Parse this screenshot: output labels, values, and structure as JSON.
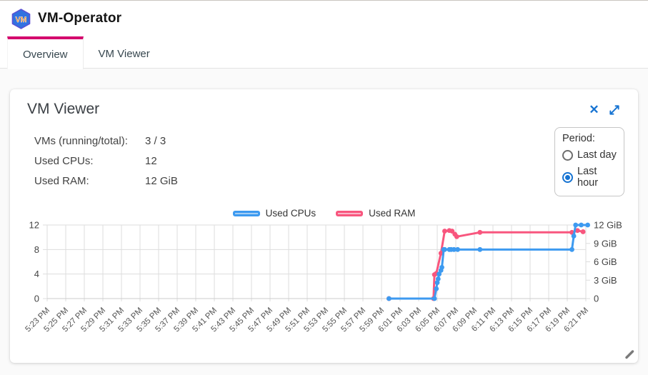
{
  "app": {
    "title": "VM-Operator",
    "logo_text": "VM"
  },
  "tabs": [
    {
      "label": "Overview",
      "active": true
    },
    {
      "label": "VM Viewer",
      "active": false
    }
  ],
  "card": {
    "title": "VM Viewer",
    "stats": [
      {
        "label": "VMs (running/total):",
        "value": "3 / 3"
      },
      {
        "label": "Used CPUs:",
        "value": "12"
      },
      {
        "label": "Used RAM:",
        "value": "12 GiB"
      }
    ],
    "period": {
      "label": "Period:",
      "options": [
        {
          "label": "Last day",
          "selected": false
        },
        {
          "label": "Last hour",
          "selected": true
        }
      ]
    }
  },
  "icons": {
    "close": "✕",
    "expand": "expand-diagonal-arrows",
    "resize": "diagonal-resize-grip"
  },
  "colors": {
    "accent_magenta": "#d4086d",
    "icon_blue": "#1673d2",
    "cpu_blue": "#3d9af0",
    "ram_pink": "#f8567e",
    "grid": "#dddddd"
  },
  "chart_data": {
    "type": "line",
    "title": "",
    "legend_position": "top-center",
    "grid": true,
    "x_range_minutes": [
      0,
      58
    ],
    "x_axis": {
      "start": "5:23 PM",
      "interval_minutes": 2,
      "labels": [
        "5:23 PM",
        "5:25 PM",
        "5:27 PM",
        "5:29 PM",
        "5:31 PM",
        "5:33 PM",
        "5:35 PM",
        "5:37 PM",
        "5:39 PM",
        "5:41 PM",
        "5:43 PM",
        "5:45 PM",
        "5:47 PM",
        "5:49 PM",
        "5:51 PM",
        "5:53 PM",
        "5:55 PM",
        "5:57 PM",
        "5:59 PM",
        "6:01 PM",
        "6:03 PM",
        "6:05 PM",
        "6:07 PM",
        "6:09 PM",
        "6:11 PM",
        "6:13 PM",
        "6:15 PM",
        "6:17 PM",
        "6:19 PM",
        "6:21 PM"
      ]
    },
    "left_axis": {
      "label": "CPUs",
      "ticks": [
        0,
        4,
        8,
        12
      ],
      "range": [
        0,
        12
      ]
    },
    "right_axis": {
      "label": "RAM",
      "range": [
        0,
        12
      ],
      "ticks": [
        {
          "v": 0,
          "label": "0"
        },
        {
          "v": 3,
          "label": "3 GiB"
        },
        {
          "v": 6,
          "label": "6 GiB"
        },
        {
          "v": 9,
          "label": "9 GiB"
        },
        {
          "v": 12,
          "label": "12 GiB"
        }
      ]
    },
    "legend": [
      {
        "name": "Used CPUs",
        "color": "#3d9af0",
        "fill": "#a3cef5"
      },
      {
        "name": "Used RAM",
        "color": "#f8567e",
        "fill": "#fbb6c9"
      }
    ],
    "series": [
      {
        "name": "Used CPUs",
        "axis": "left",
        "color": "#3d9af0",
        "points": [
          [
            36.8,
            0
          ],
          [
            41.7,
            0
          ],
          [
            41.9,
            1.6
          ],
          [
            42.0,
            2.6
          ],
          [
            42.1,
            3.2
          ],
          [
            42.2,
            4.0
          ],
          [
            42.4,
            4.6
          ],
          [
            42.5,
            5.1
          ],
          [
            42.7,
            8
          ],
          [
            42.8,
            8
          ],
          [
            43.3,
            8
          ],
          [
            43.5,
            8
          ],
          [
            43.8,
            8
          ],
          [
            44.2,
            8
          ],
          [
            46.6,
            8
          ],
          [
            56.5,
            8
          ],
          [
            56.7,
            10.2
          ],
          [
            56.9,
            12
          ],
          [
            57.5,
            12
          ],
          [
            58.2,
            12
          ]
        ]
      },
      {
        "name": "Used RAM",
        "axis": "right",
        "color": "#f8567e",
        "points": [
          [
            36.8,
            0
          ],
          [
            41.6,
            0
          ],
          [
            41.7,
            3.9
          ],
          [
            41.9,
            4.1
          ],
          [
            42.4,
            7.4
          ],
          [
            42.8,
            11.0
          ],
          [
            43.3,
            11.1
          ],
          [
            43.6,
            11.0
          ],
          [
            43.9,
            10.5
          ],
          [
            44.1,
            10.1
          ],
          [
            46.6,
            10.8
          ],
          [
            56.5,
            10.8
          ],
          [
            57.1,
            11.1
          ],
          [
            57.7,
            10.9
          ]
        ]
      }
    ]
  }
}
